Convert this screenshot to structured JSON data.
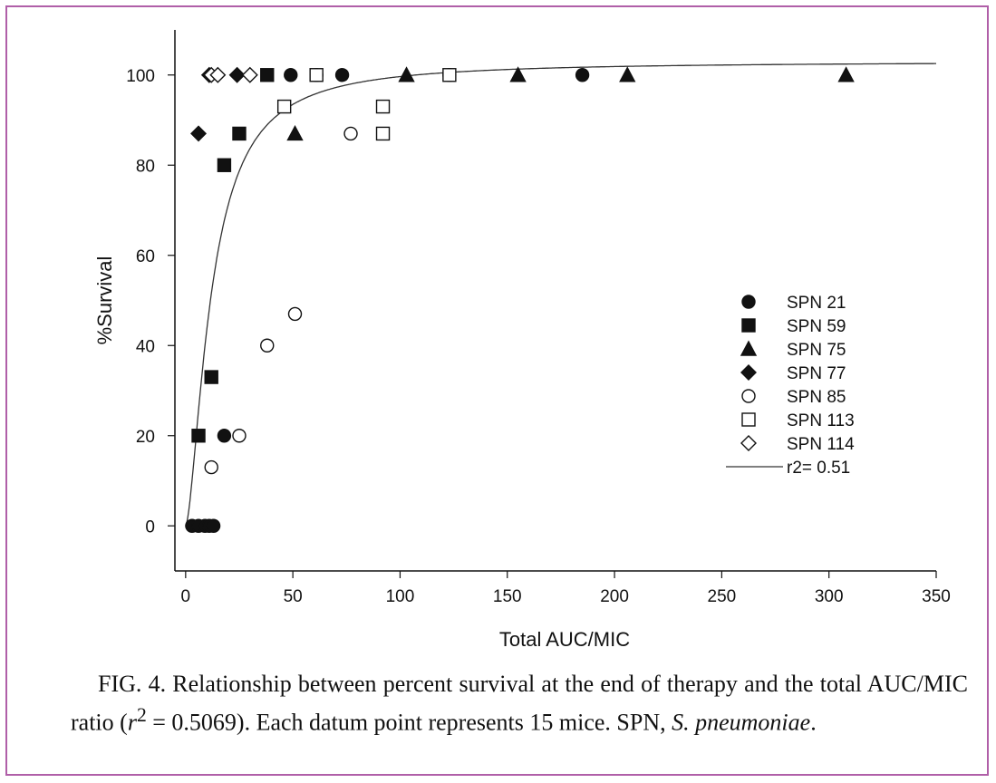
{
  "chart_data": {
    "type": "scatter",
    "xlabel": "Total AUC/MIC",
    "ylabel": "%Survival",
    "xlim": [
      -5,
      350
    ],
    "ylim": [
      -10,
      110
    ],
    "xticks": [
      0,
      50,
      100,
      150,
      200,
      250,
      300,
      350
    ],
    "yticks": [
      0,
      20,
      40,
      60,
      80,
      100
    ],
    "grid": false,
    "legend_position": "right",
    "series": [
      {
        "name": "SPN 21",
        "marker": "circle-filled",
        "points": [
          [
            3,
            0
          ],
          [
            6,
            0
          ],
          [
            9,
            0
          ],
          [
            11,
            0
          ],
          [
            13,
            0
          ],
          [
            18,
            20
          ],
          [
            49,
            100
          ],
          [
            73,
            100
          ],
          [
            185,
            100
          ]
        ]
      },
      {
        "name": "SPN 59",
        "marker": "square-filled",
        "points": [
          [
            6,
            20
          ],
          [
            12,
            33
          ],
          [
            18,
            80
          ],
          [
            25,
            87
          ],
          [
            38,
            100
          ]
        ]
      },
      {
        "name": "SPN 75",
        "marker": "triangle-filled",
        "points": [
          [
            51,
            87
          ],
          [
            103,
            100
          ],
          [
            155,
            100
          ],
          [
            206,
            100
          ],
          [
            308,
            100
          ]
        ]
      },
      {
        "name": "SPN 77",
        "marker": "diamond-filled",
        "points": [
          [
            6,
            87
          ],
          [
            11,
            100
          ],
          [
            24,
            100
          ]
        ]
      },
      {
        "name": "SPN 85",
        "marker": "circle-open",
        "points": [
          [
            12,
            13
          ],
          [
            25,
            20
          ],
          [
            38,
            40
          ],
          [
            51,
            47
          ],
          [
            77,
            87
          ],
          [
            61,
            100
          ],
          [
            123,
            100
          ]
        ]
      },
      {
        "name": "SPN 113",
        "marker": "square-open",
        "points": [
          [
            46,
            93
          ],
          [
            92,
            93
          ],
          [
            92,
            87
          ],
          [
            61,
            100
          ],
          [
            123,
            100
          ]
        ]
      },
      {
        "name": "SPN 114",
        "marker": "diamond-open",
        "points": [
          [
            12,
            100
          ],
          [
            15,
            100
          ],
          [
            30,
            100
          ]
        ]
      }
    ],
    "fit": {
      "name": "r2= 0.51",
      "model": "emax",
      "emax": 103,
      "ec50": 12,
      "hill": 1.6
    }
  },
  "caption": {
    "fig": "FIG. 4.",
    "text_before_r": "Relationship between percent survival at the end of therapy and the total AUC/MIC ratio (",
    "r_symbol": "r",
    "r_sup": "2",
    "text_after_r": " = 0.5069). Each datum point represents 15 mice. SPN, ",
    "species": "S. pneumoniae",
    "text_end": "."
  }
}
